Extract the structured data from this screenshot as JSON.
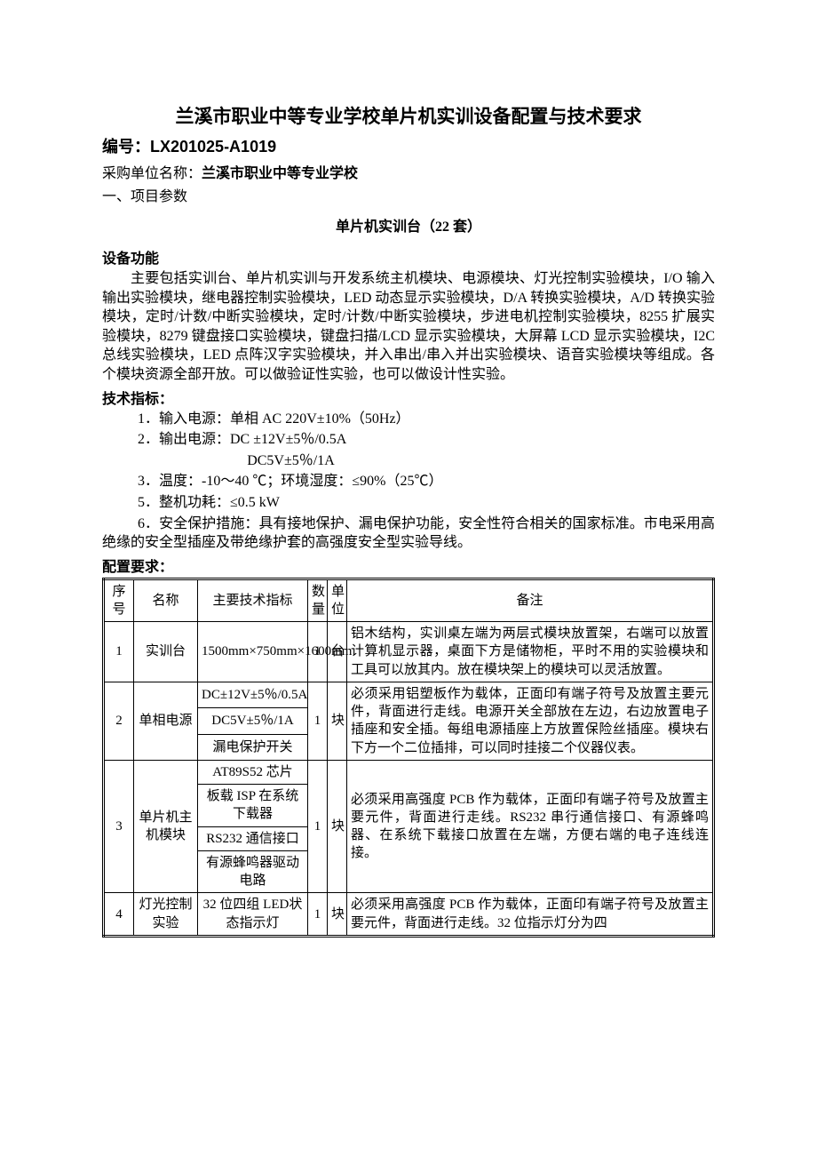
{
  "title": "兰溪市职业中等专业学校单片机实训设备配置与技术要求",
  "serial": "编号：LX201025-A1019",
  "buyer_label": "采购单位名称：",
  "buyer_name": "兰溪市职业中等专业学校",
  "section_num": "一、项目参数",
  "subtitle": "单片机实训台（22 套）",
  "heading_function": "设备功能",
  "function_text": "主要包括实训台、单片机实训与开发系统主机模块、电源模块、灯光控制实验模块，I/O 输入输出实验模块，继电器控制实验模块，LED 动态显示实验模块，D/A 转换实验模块，A/D 转换实验模块，定时/计数/中断实验模块，定时/计数/中断实验模块，步进电机控制实验模块，8255 扩展实验模块，8279 键盘接口实验模块，键盘扫描/LCD 显示实验模块，大屏幕 LCD 显示实验模块，I2C 总线实验模块，LED 点阵汉字实验模块，并入串出/串入并出实验模块、语音实验模块等组成。各个模块资源全部开放。可以做验证性实验，也可以做设计性实验。",
  "heading_spec": "技术指标：",
  "spec1": "1．输入电源：单相 AC 220V±10%（50Hz）",
  "spec2": "2．输出电源：DC ±12V±5％/0.5A",
  "spec2b": "DC5V±5％/1A",
  "spec3": "3．温度：-10～40 ℃；环境湿度：≤90%（25℃）",
  "spec5": "5．整机功耗：≤0.5 kW",
  "spec6": "6．安全保护措施：具有接地保护、漏电保护功能，安全性符合相关的国家标准。市电采用高绝缘的安全型插座及带绝缘护套的高强度安全型实验导线。",
  "heading_config": "配置要求：",
  "table": {
    "headers": {
      "seq": "序号",
      "name": "名称",
      "spec": "主要技术指标",
      "qty": "数量",
      "unit": "单位",
      "note": "备注"
    },
    "rows": [
      {
        "seq": "1",
        "name": "实训台",
        "spec": "1500mm×750mm×1600mm",
        "qty": "1",
        "unit": "台",
        "note": "铝木结构，实训桌左端为两层式模块放置架，右端可以放置计算机显示器，桌面下方是储物柜，平时不用的实验模块和工具可以放其内。放在模块架上的模块可以灵活放置。"
      },
      {
        "seq": "2",
        "name": "单相电源",
        "specs": [
          "DC±12V±5％/0.5A",
          "DC5V±5％/1A",
          "漏电保护开关"
        ],
        "qty": "1",
        "unit": "块",
        "note": "必须采用铝塑板作为载体，正面印有端子符号及放置主要元件，背面进行走线。电源开关全部放在左边，右边放置电子插座和安全插。每组电源插座上方放置保险丝插座。模块右下方一个二位插排，可以同时挂接二个仪器仪表。"
      },
      {
        "seq": "3",
        "name": "单片机主机模块",
        "specs": [
          "AT89S52 芯片",
          "板载 ISP 在系统下载器",
          "RS232 通信接口",
          "有源蜂鸣器驱动电路"
        ],
        "qty": "1",
        "unit": "块",
        "note": "必须采用高强度 PCB 作为载体，正面印有端子符号及放置主要元件，背面进行走线。RS232 串行通信接口、有源蜂鸣器、在系统下载接口放置在左端，方便右端的电子连线连接。"
      },
      {
        "seq": "4",
        "name": "灯光控制实验",
        "spec": "32 位四组 LED状态指示灯",
        "qty": "1",
        "unit": "块",
        "note": "必须采用高强度 PCB 作为载体，正面印有端子符号及放置主要元件，背面进行走线。32 位指示灯分为四"
      }
    ]
  }
}
